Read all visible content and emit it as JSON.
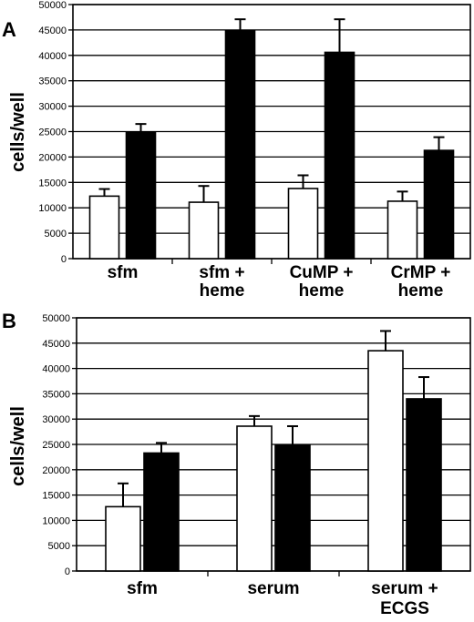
{
  "chart_data": [
    {
      "panel_label": "A",
      "type": "bar",
      "ylabel": "cells/well",
      "ylim": [
        0,
        50000
      ],
      "yticks": [
        0,
        5000,
        10000,
        15000,
        20000,
        25000,
        30000,
        35000,
        40000,
        45000,
        50000
      ],
      "grid": true,
      "categories": [
        [
          "sfm"
        ],
        [
          "sfm +",
          "heme"
        ],
        [
          "CuMP +",
          "heme"
        ],
        [
          "CrMP +",
          "heme"
        ]
      ],
      "series": [
        {
          "fill": "#ffffff",
          "values": [
            12300,
            11100,
            13800,
            11300
          ],
          "errors": [
            1400,
            3200,
            2600,
            1900
          ]
        },
        {
          "fill": "#000000",
          "values": [
            24800,
            44800,
            40600,
            21300
          ],
          "errors": [
            1700,
            2300,
            6500,
            2600
          ]
        }
      ]
    },
    {
      "panel_label": "B",
      "type": "bar",
      "ylabel": "cells/well",
      "ylim": [
        0,
        50000
      ],
      "yticks": [
        0,
        5000,
        10000,
        15000,
        20000,
        25000,
        30000,
        35000,
        40000,
        45000,
        50000
      ],
      "grid": true,
      "categories": [
        [
          "sfm"
        ],
        [
          "serum"
        ],
        [
          "serum +",
          "ECGS"
        ]
      ],
      "series": [
        {
          "fill": "#ffffff",
          "values": [
            12700,
            28600,
            43500
          ],
          "errors": [
            4600,
            2000,
            3900
          ]
        },
        {
          "fill": "#000000",
          "values": [
            23300,
            24800,
            34000
          ],
          "errors": [
            2000,
            3800,
            4300
          ]
        }
      ]
    }
  ]
}
